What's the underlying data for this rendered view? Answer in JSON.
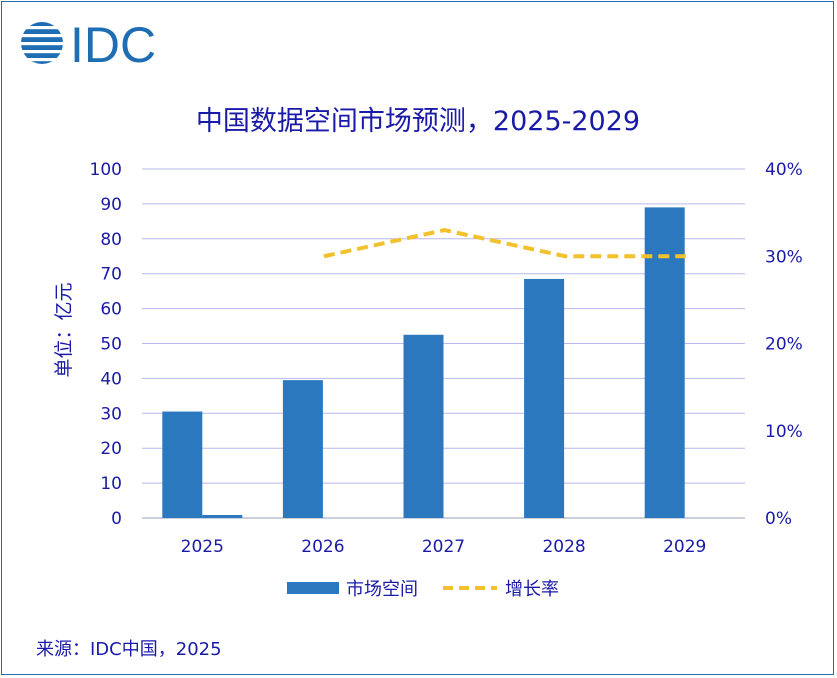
{
  "logo": {
    "text": "IDC",
    "color": "#1f6db3"
  },
  "chart_data": {
    "type": "bar",
    "title": "中国数据空间市场预测，2025-2029",
    "ylabel": "单位：亿元",
    "categories": [
      "2025",
      "2026",
      "2027",
      "2028",
      "2029"
    ],
    "ylim": [
      0,
      100
    ],
    "yticks": [
      0,
      10,
      20,
      30,
      40,
      50,
      60,
      70,
      80,
      90,
      100
    ],
    "y2lim": [
      0,
      0.4
    ],
    "y2ticks": [
      "0%",
      "10%",
      "20%",
      "30%",
      "40%"
    ],
    "grid": true,
    "legend_position": "bottom",
    "series": [
      {
        "name": "市场空间",
        "type": "bar",
        "axis": "left",
        "color": "#2b78be",
        "values": [
          30.5,
          39.5,
          52.5,
          68.5,
          89
        ]
      },
      {
        "name": "增长率",
        "type": "line",
        "axis": "right",
        "style": "dashed",
        "color": "#f2c12e",
        "values": [
          null,
          0.3,
          0.33,
          0.3,
          0.3
        ]
      }
    ]
  },
  "source": "来源：IDC中国，2025"
}
